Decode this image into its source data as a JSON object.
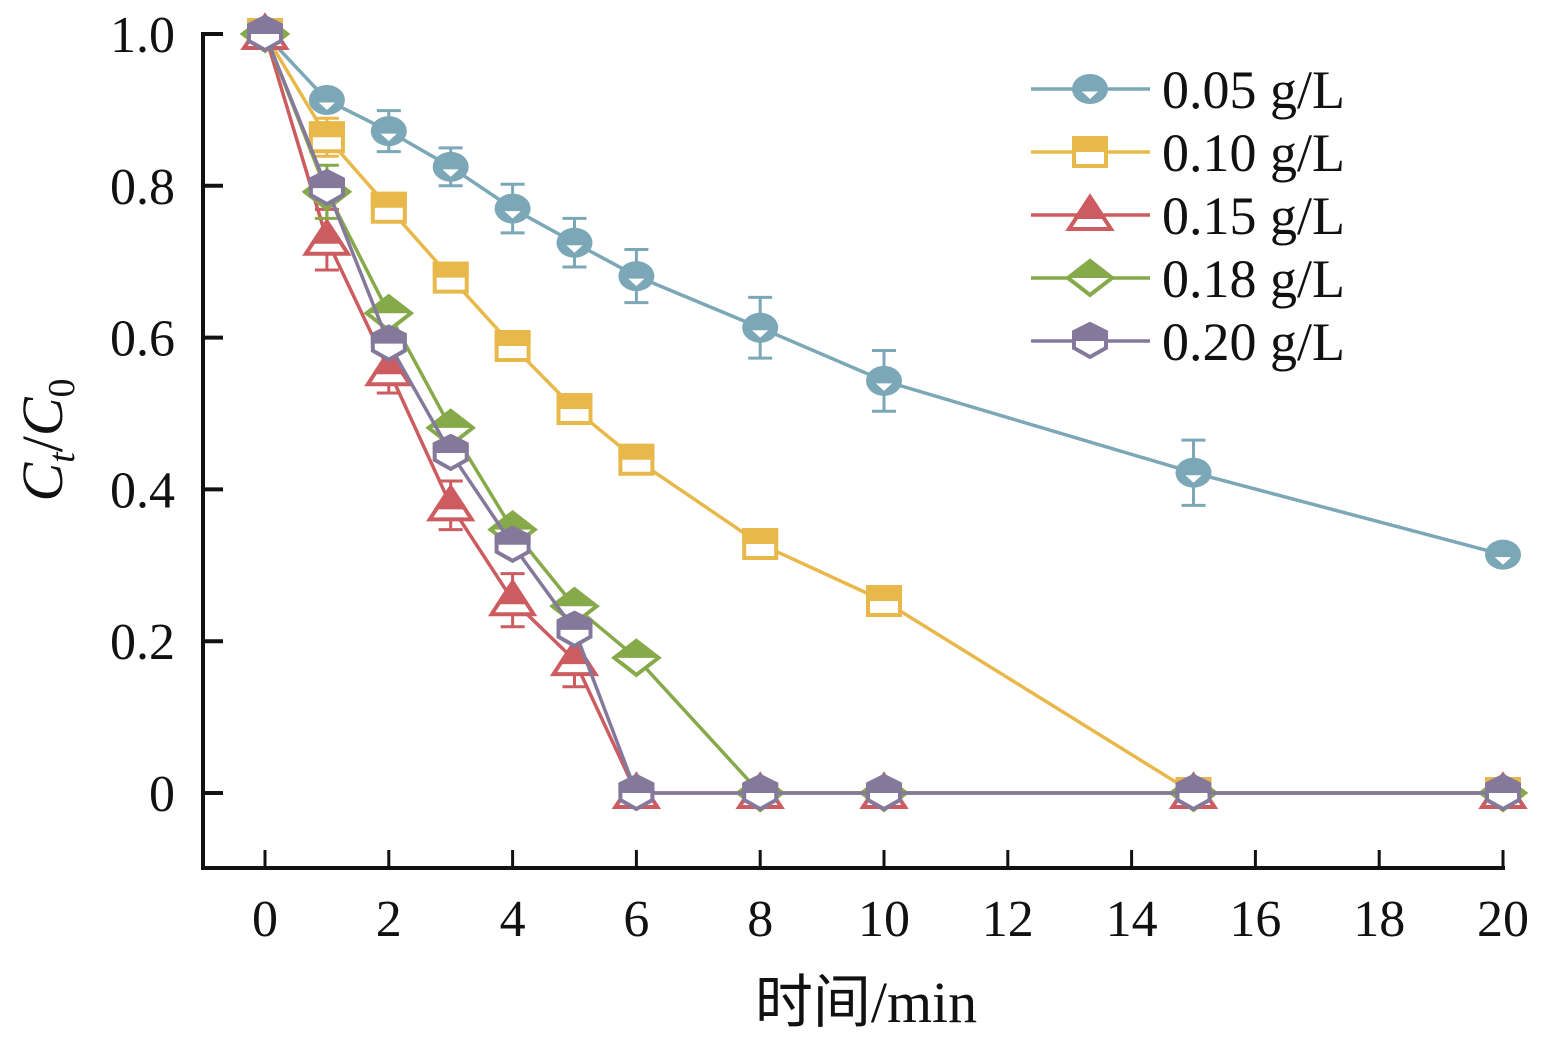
{
  "chart_data": {
    "type": "line",
    "title": "",
    "xlabel": "时间/min",
    "ylabel_main": "C",
    "ylabel_sub1": "t",
    "ylabel_sep": "/",
    "ylabel_main2": "C",
    "ylabel_sub2": "0",
    "xlim": [
      -1,
      20
    ],
    "ylim": [
      -0.1,
      1.0
    ],
    "xticks": [
      0,
      2,
      4,
      6,
      8,
      10,
      12,
      14,
      16,
      18,
      20
    ],
    "xtick_labels": [
      "0",
      "2",
      "4",
      "6",
      "8",
      "10",
      "12",
      "14",
      "16",
      "18",
      "20"
    ],
    "yticks": [
      0,
      0.2,
      0.4,
      0.6,
      0.8,
      1.0
    ],
    "ytick_labels": [
      "0",
      "0.2",
      "0.4",
      "0.6",
      "0.8",
      "1.0"
    ],
    "grid": false,
    "legend_position": "top-right",
    "x": [
      0,
      1,
      2,
      3,
      4,
      5,
      6,
      8,
      10,
      15,
      20
    ],
    "series": [
      {
        "name": "0.05 g/L",
        "color": "#7BA7B7",
        "marker": "circle",
        "x": [
          0,
          1,
          2,
          3,
          4,
          5,
          6,
          8,
          10,
          15,
          20
        ],
        "values": [
          1.0,
          0.913,
          0.872,
          0.825,
          0.77,
          0.725,
          0.681,
          0.613,
          0.543,
          0.422,
          0.314
        ],
        "errors": [
          0,
          0.01,
          0.027,
          0.025,
          0.032,
          0.032,
          0.035,
          0.04,
          0.04,
          0.043,
          0
        ]
      },
      {
        "name": "0.10 g/L",
        "color": "#E8B84A",
        "marker": "square",
        "x": [
          0,
          1,
          2,
          3,
          4,
          5,
          6,
          8,
          10,
          15,
          20
        ],
        "values": [
          1.0,
          0.864,
          0.771,
          0.679,
          0.589,
          0.506,
          0.439,
          0.328,
          0.253,
          0.0,
          0.0
        ],
        "errors": [
          0,
          0.025,
          0.01,
          0.01,
          0.01,
          0.01,
          0.01,
          0.01,
          0.01,
          0,
          0
        ]
      },
      {
        "name": "0.15 g/L",
        "color": "#CC5C60",
        "marker": "triangle",
        "x": [
          0,
          1,
          2,
          3,
          4,
          5,
          6,
          8,
          10,
          15,
          20
        ],
        "values": [
          1.0,
          0.729,
          0.557,
          0.379,
          0.254,
          0.175,
          0.0,
          0.0,
          0.0,
          0.0,
          0.0
        ],
        "errors": [
          0,
          0.04,
          0.03,
          0.032,
          0.035,
          0.035,
          0,
          0,
          0,
          0,
          0
        ]
      },
      {
        "name": "0.18 g/L",
        "color": "#86A94A",
        "marker": "diamond",
        "x": [
          0,
          1,
          2,
          3,
          4,
          5,
          6,
          8,
          10,
          15,
          20
        ],
        "values": [
          1.0,
          0.792,
          0.632,
          0.481,
          0.347,
          0.246,
          0.178,
          0.0,
          0.0,
          0.0,
          0.0
        ],
        "errors": [
          0,
          0.035,
          0.01,
          0.01,
          0.01,
          0.01,
          0.01,
          0,
          0,
          0,
          0
        ]
      },
      {
        "name": "0.20 g/L",
        "color": "#85799B",
        "marker": "hexagon",
        "x": [
          0,
          1,
          2,
          3,
          4,
          5,
          6,
          8,
          10,
          15,
          20
        ],
        "values": [
          1.0,
          0.797,
          0.592,
          0.448,
          0.327,
          0.215,
          0.0,
          0.0,
          0.0,
          0.0,
          0.0
        ],
        "errors": [
          0,
          0.015,
          0.012,
          0.012,
          0.012,
          0.012,
          0,
          0,
          0,
          0,
          0
        ]
      }
    ]
  }
}
